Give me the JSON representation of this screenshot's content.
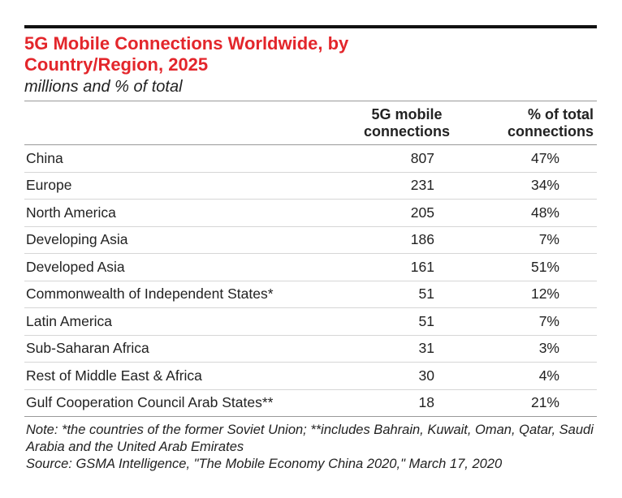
{
  "header": {
    "title": "5G Mobile Connections Worldwide, by Country/Region, 2025",
    "subtitle": "millions and % of total"
  },
  "table": {
    "columns": [
      "5G mobile connections",
      "% of total connections"
    ],
    "rows": [
      [
        "China",
        "807",
        "47%"
      ],
      [
        "Europe",
        "231",
        "34%"
      ],
      [
        "North America",
        "205",
        "48%"
      ],
      [
        "Developing Asia",
        "186",
        "7%"
      ],
      [
        "Developed Asia",
        "161",
        "51%"
      ],
      [
        "Commonwealth of Independent States*",
        "51",
        "12%"
      ],
      [
        "Latin America",
        "51",
        "7%"
      ],
      [
        "Sub-Saharan Africa",
        "31",
        "3%"
      ],
      [
        "Rest of Middle East & Africa",
        "30",
        "4%"
      ],
      [
        "Gulf Cooperation Council Arab States**",
        "18",
        "21%"
      ]
    ]
  },
  "footer": {
    "note": "Note: *the countries of the former Soviet Union; **includes Bahrain, Kuwait, Oman, Qatar, Saudi Arabia and the United Arab Emirates",
    "source": "Source: GSMA Intelligence, \"The Mobile Economy China 2020,\" March 17, 2020"
  }
}
